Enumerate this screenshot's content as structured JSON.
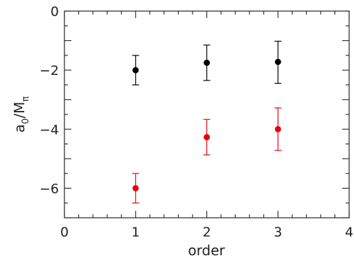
{
  "chart_data": {
    "type": "scatter",
    "xlabel": "order",
    "ylabel": "a0/Mπ",
    "ylabel_parts": {
      "main": "a",
      "sub0": "0",
      "sep": "/M",
      "sub1": "π"
    },
    "xlim": [
      0,
      4
    ],
    "ylim": [
      -7,
      0
    ],
    "x_ticks": [
      0,
      1,
      2,
      3,
      4
    ],
    "y_ticks": [
      0,
      -2,
      -4,
      -6
    ],
    "grid": false,
    "series": [
      {
        "color": "#000000",
        "points": [
          {
            "x": 1,
            "y": -2.0,
            "err_low": -2.5,
            "err_high": -1.5
          },
          {
            "x": 2,
            "y": -1.75,
            "err_low": -2.35,
            "err_high": -1.15
          },
          {
            "x": 3,
            "y": -1.72,
            "err_low": -2.45,
            "err_high": -1.02
          }
        ]
      },
      {
        "color": "#e8000b",
        "points": [
          {
            "x": 1,
            "y": -6.0,
            "err_low": -6.5,
            "err_high": -5.5
          },
          {
            "x": 2,
            "y": -4.27,
            "err_low": -4.87,
            "err_high": -3.67
          },
          {
            "x": 3,
            "y": -4.0,
            "err_low": -4.72,
            "err_high": -3.28
          }
        ]
      }
    ]
  }
}
